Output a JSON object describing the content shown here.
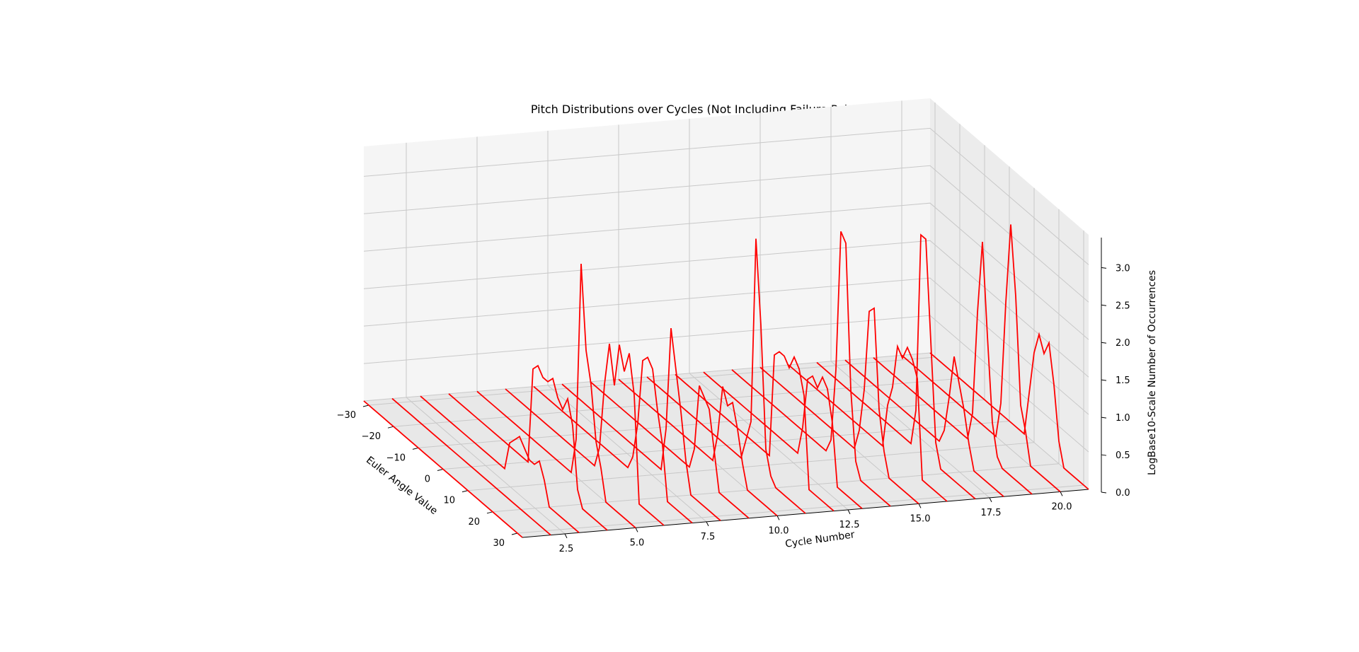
{
  "chart_data": {
    "type": "line",
    "projection": "3d",
    "title": "Pitch Distributions over Cycles (Not Including Failure Points)",
    "xlabel": "Cycle Number",
    "ylabel": "Euler Angle Value",
    "zlabel": "LogBase10-Scale Number of Occurrences",
    "xlim": [
      1,
      21
    ],
    "ylim": [
      -32,
      32
    ],
    "zlim": [
      0,
      3.4
    ],
    "xticks": [
      "2.5",
      "5.0",
      "7.5",
      "10.0",
      "12.5",
      "15.0",
      "17.5",
      "20.0"
    ],
    "yticks": [
      "−30",
      "−20",
      "−10",
      "0",
      "10",
      "20",
      "30"
    ],
    "zticks": [
      "0.0",
      "0.5",
      "1.0",
      "1.5",
      "2.0",
      "2.5",
      "3.0"
    ],
    "grid": true,
    "line_color": "#ff0000",
    "pane_color": "#f2f2f2",
    "y_values": [
      -32,
      -30,
      -28,
      -26,
      -24,
      -22,
      -20,
      -18,
      -16,
      -14,
      -12,
      -10,
      -8,
      -6,
      -4,
      -2,
      0,
      2,
      4,
      6,
      8,
      10,
      12,
      14,
      16,
      18,
      20,
      22,
      24,
      26,
      28,
      30,
      32
    ],
    "series": [
      {
        "cycle": 1,
        "z": [
          0,
          0,
          0,
          0,
          0,
          0,
          0,
          0,
          0,
          0,
          0,
          0,
          0,
          0,
          0,
          0,
          0,
          0,
          0,
          0,
          0,
          0,
          0,
          0,
          0,
          0,
          0,
          0,
          0,
          0,
          0,
          0,
          0
        ]
      },
      {
        "cycle": 2,
        "z": [
          0,
          0,
          0,
          0,
          0,
          0,
          0,
          0,
          0,
          0,
          0,
          0,
          0,
          0,
          0,
          0,
          0,
          0,
          0,
          0,
          0,
          0,
          0,
          0,
          0,
          0,
          0,
          0,
          0,
          0,
          0,
          0,
          0
        ]
      },
      {
        "cycle": 3,
        "z": [
          0,
          0,
          0,
          0,
          0,
          0,
          0,
          0,
          0,
          0,
          0,
          0,
          0,
          0,
          0,
          0,
          0,
          0,
          0.4,
          0.5,
          0.6,
          0.5,
          0.4,
          0.4,
          0.5,
          0.3,
          0,
          0,
          0,
          0,
          0,
          0,
          0
        ]
      },
      {
        "cycle": 4,
        "z": [
          0,
          0,
          0,
          0,
          0,
          0,
          0,
          0,
          0,
          0,
          0,
          0,
          0,
          0,
          0,
          0,
          0,
          1.3,
          1.4,
          1.3,
          1.3,
          1.4,
          1.2,
          1.1,
          1.3,
          1.0,
          0.2,
          0,
          0,
          0,
          0,
          0,
          0
        ]
      },
      {
        "cycle": 5,
        "z": [
          0,
          0,
          0,
          0,
          0,
          0,
          0,
          0,
          0,
          0,
          0,
          0,
          0,
          0,
          0,
          0,
          0,
          0,
          0,
          0,
          0.5,
          2.9,
          1.8,
          1.4,
          0.7,
          0.4,
          0,
          0,
          0,
          0,
          0,
          0,
          0
        ]
      },
      {
        "cycle": 6,
        "z": [
          0,
          0,
          0,
          0,
          0,
          0,
          0,
          0,
          0,
          0,
          0,
          0,
          0,
          0,
          0,
          0,
          0,
          0,
          0,
          0.3,
          1.2,
          1.8,
          1.3,
          1.9,
          1.6,
          1.9,
          1.4,
          0,
          0,
          0,
          0,
          0,
          0
        ]
      },
      {
        "cycle": 7,
        "z": [
          0,
          0,
          0,
          0,
          0,
          0,
          0,
          0,
          0,
          0,
          0,
          0,
          0,
          0,
          0,
          0,
          0,
          0,
          0,
          0,
          0.2,
          0.7,
          1.6,
          1.7,
          1.6,
          1.1,
          0.7,
          0,
          0,
          0,
          0,
          0,
          0
        ]
      },
      {
        "cycle": 8,
        "z": [
          0,
          0,
          0,
          0,
          0,
          0,
          0,
          0,
          0,
          0,
          0,
          0,
          0,
          0,
          0,
          0,
          0,
          0,
          0,
          0,
          0,
          0.6,
          2.0,
          1.5,
          1.0,
          0.4,
          0,
          0,
          0,
          0,
          0,
          0,
          0
        ]
      },
      {
        "cycle": 9,
        "z": [
          0,
          0,
          0,
          0,
          0,
          0,
          0,
          0,
          0,
          0,
          0,
          0,
          0,
          0,
          0,
          0,
          0,
          0,
          0,
          0,
          0,
          0.3,
          1.2,
          1.1,
          1.0,
          0.5,
          0,
          0,
          0,
          0,
          0,
          0,
          0
        ]
      },
      {
        "cycle": 10,
        "z": [
          0,
          0,
          0,
          0,
          0,
          0,
          0,
          0,
          0,
          0,
          0,
          0,
          0,
          0,
          0,
          0,
          0,
          0,
          0,
          0,
          0.4,
          1.1,
          0.9,
          1.0,
          0.7,
          0.3,
          0,
          0,
          0,
          0,
          0,
          0,
          0
        ]
      },
      {
        "cycle": 11,
        "z": [
          0,
          0,
          0,
          0,
          0,
          0,
          0,
          0,
          0,
          0,
          0,
          0,
          0,
          0,
          0,
          0,
          0,
          0,
          0,
          0,
          0.3,
          0.6,
          3.1,
          2.0,
          0.4,
          0.1,
          0,
          0,
          0,
          0,
          0,
          0,
          0
        ]
      },
      {
        "cycle": 12,
        "z": [
          0,
          0,
          0,
          0,
          0,
          0,
          0,
          0,
          0,
          0,
          0,
          0,
          0,
          0,
          0,
          0,
          0,
          0,
          0,
          0,
          1.4,
          1.5,
          1.5,
          1.4,
          1.6,
          1.5,
          1.2,
          0,
          0,
          0,
          0,
          0,
          0
        ]
      },
      {
        "cycle": 13,
        "z": [
          0,
          0,
          0,
          0,
          0,
          0,
          0,
          0,
          0,
          0,
          0,
          0,
          0,
          0,
          0,
          0,
          0,
          0,
          0,
          0,
          0.4,
          1.1,
          1.2,
          1.1,
          1.3,
          1.2,
          0.8,
          0,
          0,
          0,
          0,
          0,
          0
        ]
      },
      {
        "cycle": 14,
        "z": [
          0,
          0,
          0,
          0,
          0,
          0,
          0,
          0,
          0,
          0,
          0,
          0,
          0,
          0,
          0,
          0,
          0,
          0,
          0,
          0,
          0.2,
          1.2,
          3.1,
          3.0,
          1.1,
          0.2,
          0,
          0,
          0,
          0,
          0,
          0,
          0
        ]
      },
      {
        "cycle": 15,
        "z": [
          0,
          0,
          0,
          0,
          0,
          0,
          0,
          0,
          0,
          0,
          0,
          0,
          0,
          0,
          0,
          0,
          0,
          0,
          0,
          0,
          0.3,
          0.9,
          2.0,
          2.1,
          0.8,
          0.3,
          0,
          0,
          0,
          0,
          0,
          0,
          0
        ]
      },
      {
        "cycle": 16,
        "z": [
          0,
          0,
          0,
          0,
          0,
          0,
          0,
          0,
          0,
          0,
          0,
          0,
          0,
          0,
          0,
          0,
          0,
          0,
          0,
          0,
          0.6,
          0.9,
          1.5,
          1.4,
          1.6,
          1.5,
          1.3,
          0,
          0,
          0,
          0,
          0,
          0
        ]
      },
      {
        "cycle": 17,
        "z": [
          0,
          0,
          0,
          0,
          0,
          0,
          0,
          0,
          0,
          0,
          0,
          0,
          0,
          0,
          0,
          0,
          0,
          0,
          0,
          0,
          0.5,
          2.9,
          2.9,
          1.6,
          0.3,
          0,
          0,
          0,
          0,
          0,
          0,
          0,
          0
        ]
      },
      {
        "cycle": 18,
        "z": [
          0,
          0,
          0,
          0,
          0,
          0,
          0,
          0,
          0,
          0,
          0,
          0,
          0,
          0,
          0,
          0,
          0,
          0,
          0,
          0,
          0.2,
          0.7,
          1.3,
          1.0,
          0.7,
          0.3,
          0,
          0,
          0,
          0,
          0,
          0,
          0
        ]
      },
      {
        "cycle": 19,
        "z": [
          0,
          0,
          0,
          0,
          0,
          0,
          0,
          0,
          0,
          0,
          0,
          0,
          0,
          0,
          0,
          0,
          0,
          0,
          0,
          0,
          0.4,
          1.8,
          2.8,
          1.6,
          0.5,
          0.1,
          0,
          0,
          0,
          0,
          0,
          0,
          0
        ]
      },
      {
        "cycle": 20,
        "z": [
          0,
          0,
          0,
          0,
          0,
          0,
          0,
          0,
          0,
          0,
          0,
          0,
          0,
          0,
          0,
          0,
          0,
          0,
          0,
          0,
          0.5,
          1.9,
          3.0,
          2.1,
          0.7,
          0.4,
          0,
          0,
          0,
          0,
          0,
          0,
          0
        ]
      },
      {
        "cycle": 21,
        "z": [
          0,
          0,
          0,
          0,
          0,
          0,
          0,
          0,
          0,
          0,
          0,
          0,
          0,
          0,
          0,
          0,
          0,
          0,
          0,
          0,
          0.6,
          1.2,
          1.5,
          1.3,
          1.5,
          1.0,
          0.3,
          0,
          0,
          0,
          0,
          0,
          0
        ]
      }
    ]
  }
}
